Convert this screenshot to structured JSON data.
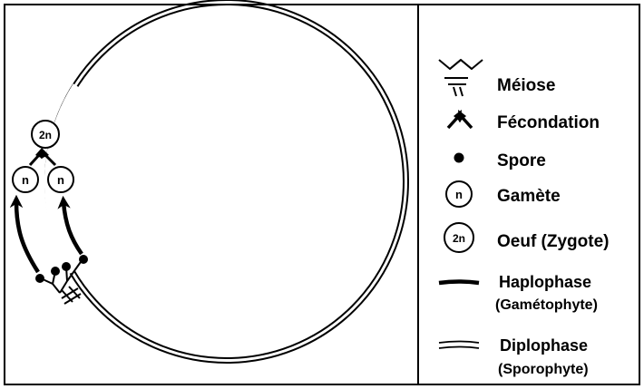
{
  "diagram": {
    "nodes": {
      "zygote": "2n",
      "gamete_left": "n",
      "gamete_right": "n"
    }
  },
  "legend": {
    "meiosis": "Méiose",
    "fertilization": "Fécondation",
    "spore": "Spore",
    "gamete_symbol": "n",
    "gamete": "Gamète",
    "zygote_symbol": "2n",
    "zygote": "Oeuf (Zygote)",
    "haplophase": "Haplophase",
    "haplophase_sub": "(Gamétophyte)",
    "diplophase": "Diplophase",
    "diplophase_sub": "(Sporophyte)"
  }
}
